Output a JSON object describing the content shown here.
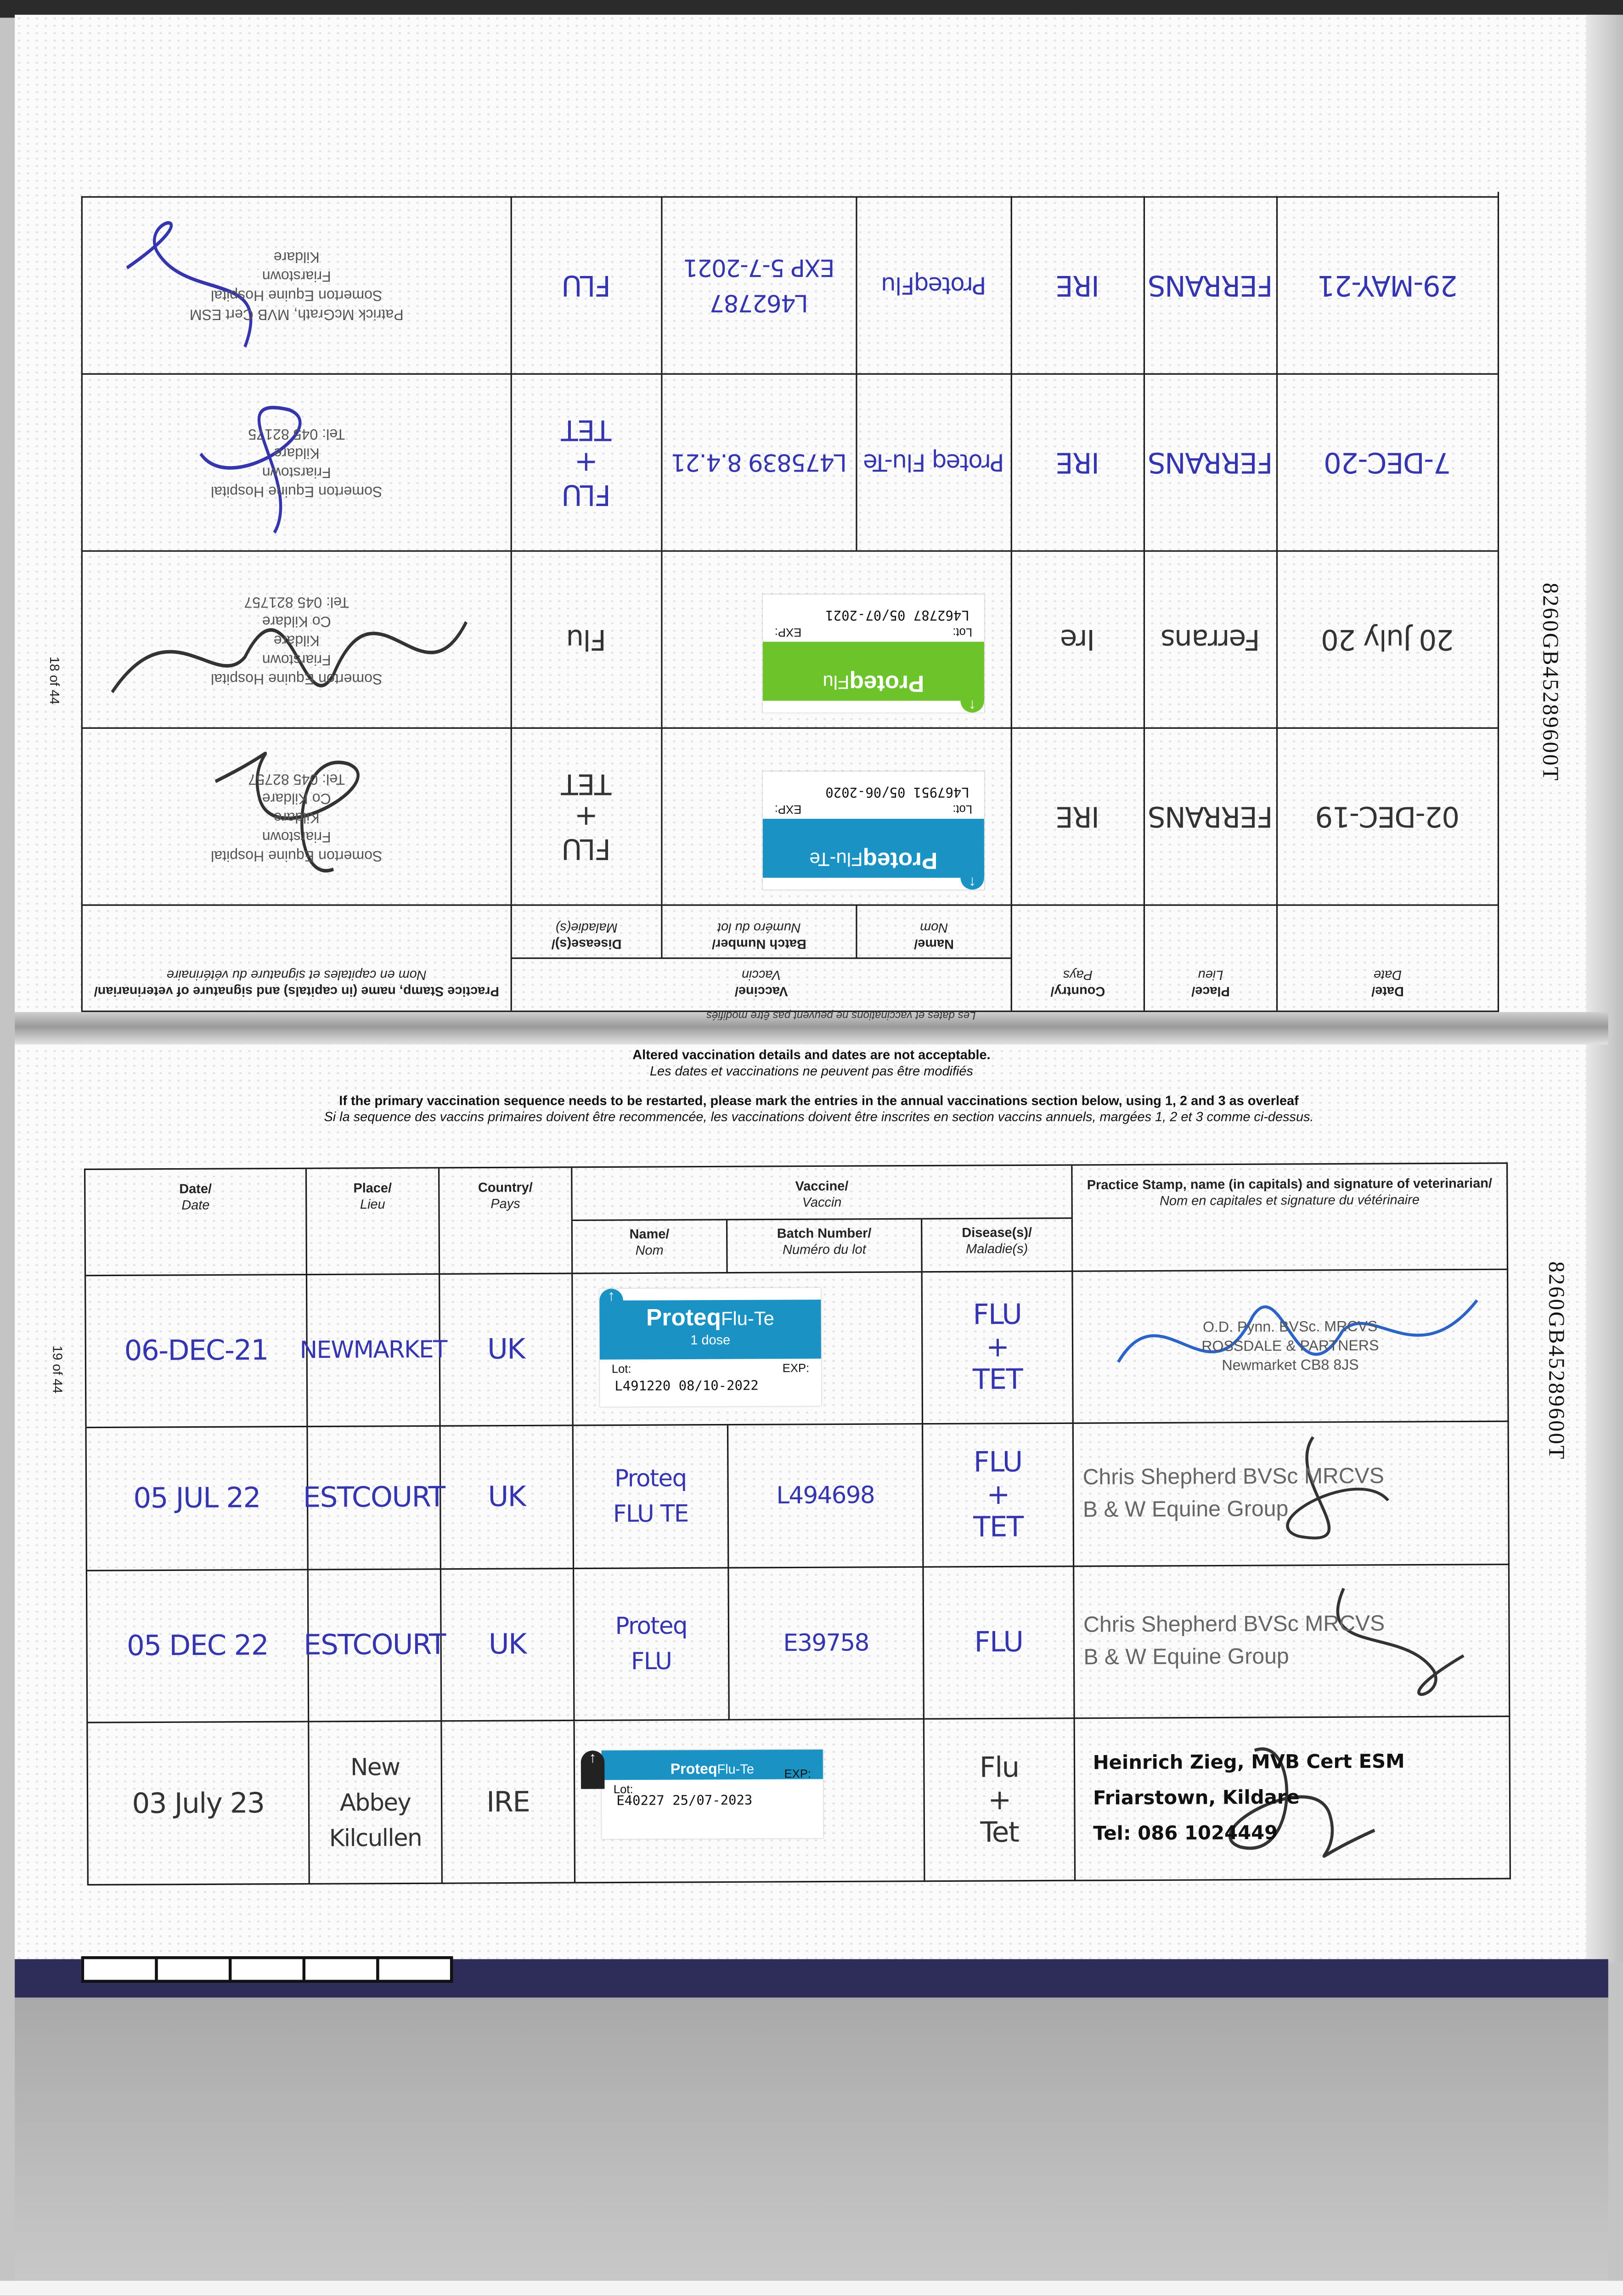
{
  "upper_page": {
    "page_number": "18 of 44",
    "passport_code": "8260GB45289600T",
    "fold_notice": "Les dates et vaccinations ne peuvent pas être modifiés",
    "header": {
      "date": "Date/",
      "date_fr": "Date",
      "place": "Place/",
      "place_fr": "Lieu",
      "country": "Country/",
      "country_fr": "Pays",
      "vaccine": "Vaccine/",
      "vaccine_fr": "Vaccin",
      "name": "Name/",
      "name_fr": "Nom",
      "batch": "Batch Number/",
      "batch_fr": "Numéro du lot",
      "disease": "Disease(s)/",
      "disease_fr": "Maladie(s)",
      "stamp": "Practice Stamp, name (in capitals) and signature of veterinarian/",
      "stamp_fr": "Nom en capitales et signature du vétérinaire"
    },
    "rows": [
      {
        "ink": "pencil",
        "date": "02-DEC-19",
        "place": "FERRANS",
        "country": "IRE",
        "sticker": {
          "brand": "Proteq",
          "product": "Flu-Te",
          "dose": "",
          "lot_label": "Lot:",
          "exp_label": "EXP:",
          "lot": "L467951",
          "exp": "05/06-2020",
          "color": "#1a93c4"
        },
        "disease": "FLU\n+\nTET",
        "stamp": [
          "Somerton Equine Hospital",
          "Friarstown",
          "Kildare",
          "Co Kildare",
          "Tel: 045 82757"
        ],
        "stamp_style": "grey"
      },
      {
        "ink": "pencil",
        "date": "20 July 20",
        "place": "Ferrans",
        "country": "Ire",
        "sticker": {
          "brand": "Proteq",
          "product": "Flu",
          "dose": "",
          "lot_label": "Lot:",
          "exp_label": "EXP:",
          "lot": "L462787",
          "exp": "05/07-2021",
          "color": "#6cc42a"
        },
        "disease": "Flu",
        "stamp": [
          "Somerton Equine Hospital",
          "Friarstown",
          "Kildare",
          "Co Kildare",
          "Tel: 045 821757"
        ],
        "stamp_style": "grey"
      },
      {
        "ink": "blue",
        "date": "7-DEC-20",
        "place": "FERRANS",
        "country": "IRE",
        "name": "Proteq Flu-Te",
        "batch": "L475839 8.4.21",
        "disease": "FLU\n+\nTET",
        "stamp": [
          "Somerton Equine Hospital",
          "Friarstown",
          "Kildare",
          "Tel: 045 82175"
        ],
        "stamp_style": "grey"
      },
      {
        "ink": "blue",
        "date": "29-MAY-21",
        "place": "FERRANS",
        "country": "IRE",
        "name": "ProteqFlu",
        "batch": "L462787\nEXP 5-7-2021",
        "disease": "FLU",
        "stamp": [
          "Patrick McGrath, MVB Cert ESM",
          "Somerton Equine Hospital",
          "Friarstown",
          "Kildare"
        ],
        "stamp_style": "grey"
      }
    ]
  },
  "lower_page": {
    "page_number": "19 of 44",
    "passport_code": "8260GB45289600T",
    "notices": {
      "altered": "Altered vaccination details and dates are not acceptable.",
      "altered_fr": "Les dates et vaccinations ne peuvent pas être modifiés",
      "restart": "If the primary vaccination sequence needs to be restarted, please mark the entries in the annual vaccinations section below, using 1, 2 and 3 as overleaf",
      "restart_fr": "Si la sequence des vaccins primaires doivent être recommencée, les vaccinations doivent être inscrites en section vaccins annuels, margées 1, 2 et 3 comme ci-dessus."
    },
    "header": {
      "date": "Date/",
      "date_fr": "Date",
      "place": "Place/",
      "place_fr": "Lieu",
      "country": "Country/",
      "country_fr": "Pays",
      "vaccine": "Vaccine/",
      "vaccine_fr": "Vaccin",
      "name": "Name/",
      "name_fr": "Nom",
      "batch": "Batch Number/",
      "batch_fr": "Numéro du lot",
      "disease": "Disease(s)/",
      "disease_fr": "Maladie(s)",
      "stamp": "Practice Stamp, name (in capitals) and signature of veterinarian/",
      "stamp_fr": "Nom en capitales et signature du vétérinaire"
    },
    "rows": [
      {
        "ink": "blue",
        "date": "06-DEC-21",
        "place": "NEWMARKET",
        "country": "UK",
        "sticker": {
          "brand": "Proteq",
          "product": "Flu-Te",
          "dose": "1 dose",
          "lot_label": "Lot:",
          "exp_label": "EXP:",
          "lot": "L491220",
          "exp": "08/10-2022",
          "color": "#1a93c4"
        },
        "disease": "FLU\n+\nTET",
        "stamp": [
          "O.D. Pynn. BVSc. MRCVS",
          "ROSSDALE & PARTNERS",
          "Newmarket CB8 8JS"
        ],
        "stamp_style": "grey"
      },
      {
        "ink": "blue",
        "date": "05 JUL 22",
        "place": "ESTCOURT",
        "country": "UK",
        "name": "Proteq\nFLU TE",
        "batch": "L494698",
        "disease": "FLU\n+\nTET",
        "stamp": [
          "Chris Shepherd BVSc MRCVS",
          "B & W Equine Group"
        ],
        "stamp_style": "big"
      },
      {
        "ink": "blue",
        "date": "05 DEC 22",
        "place": "ESTCOURT",
        "country": "UK",
        "name": "Proteq\nFLU",
        "batch": "E39758",
        "disease": "FLU",
        "stamp": [
          "Chris Shepherd BVSc MRCVS",
          "B & W Equine Group"
        ],
        "stamp_style": "big"
      },
      {
        "ink": "pencil",
        "date": "03 July 23",
        "place": "New\nAbbey\nKilcullen",
        "country": "IRE",
        "sticker": {
          "brand": "Proteq",
          "product": "Flu-Te",
          "dose": "",
          "lot_label": "Lot:",
          "exp_label": "EXP:",
          "lot": "E40227",
          "exp": "25/07-2023",
          "color": "#1a93c4",
          "slim": true
        },
        "disease": "Flu\n+\nTet",
        "stamp": [
          "Heinrich Zieg, MVB Cert ESM",
          "Friarstown, Kildare",
          "Tel: 086 1024449"
        ],
        "stamp_style": "bold"
      }
    ]
  }
}
